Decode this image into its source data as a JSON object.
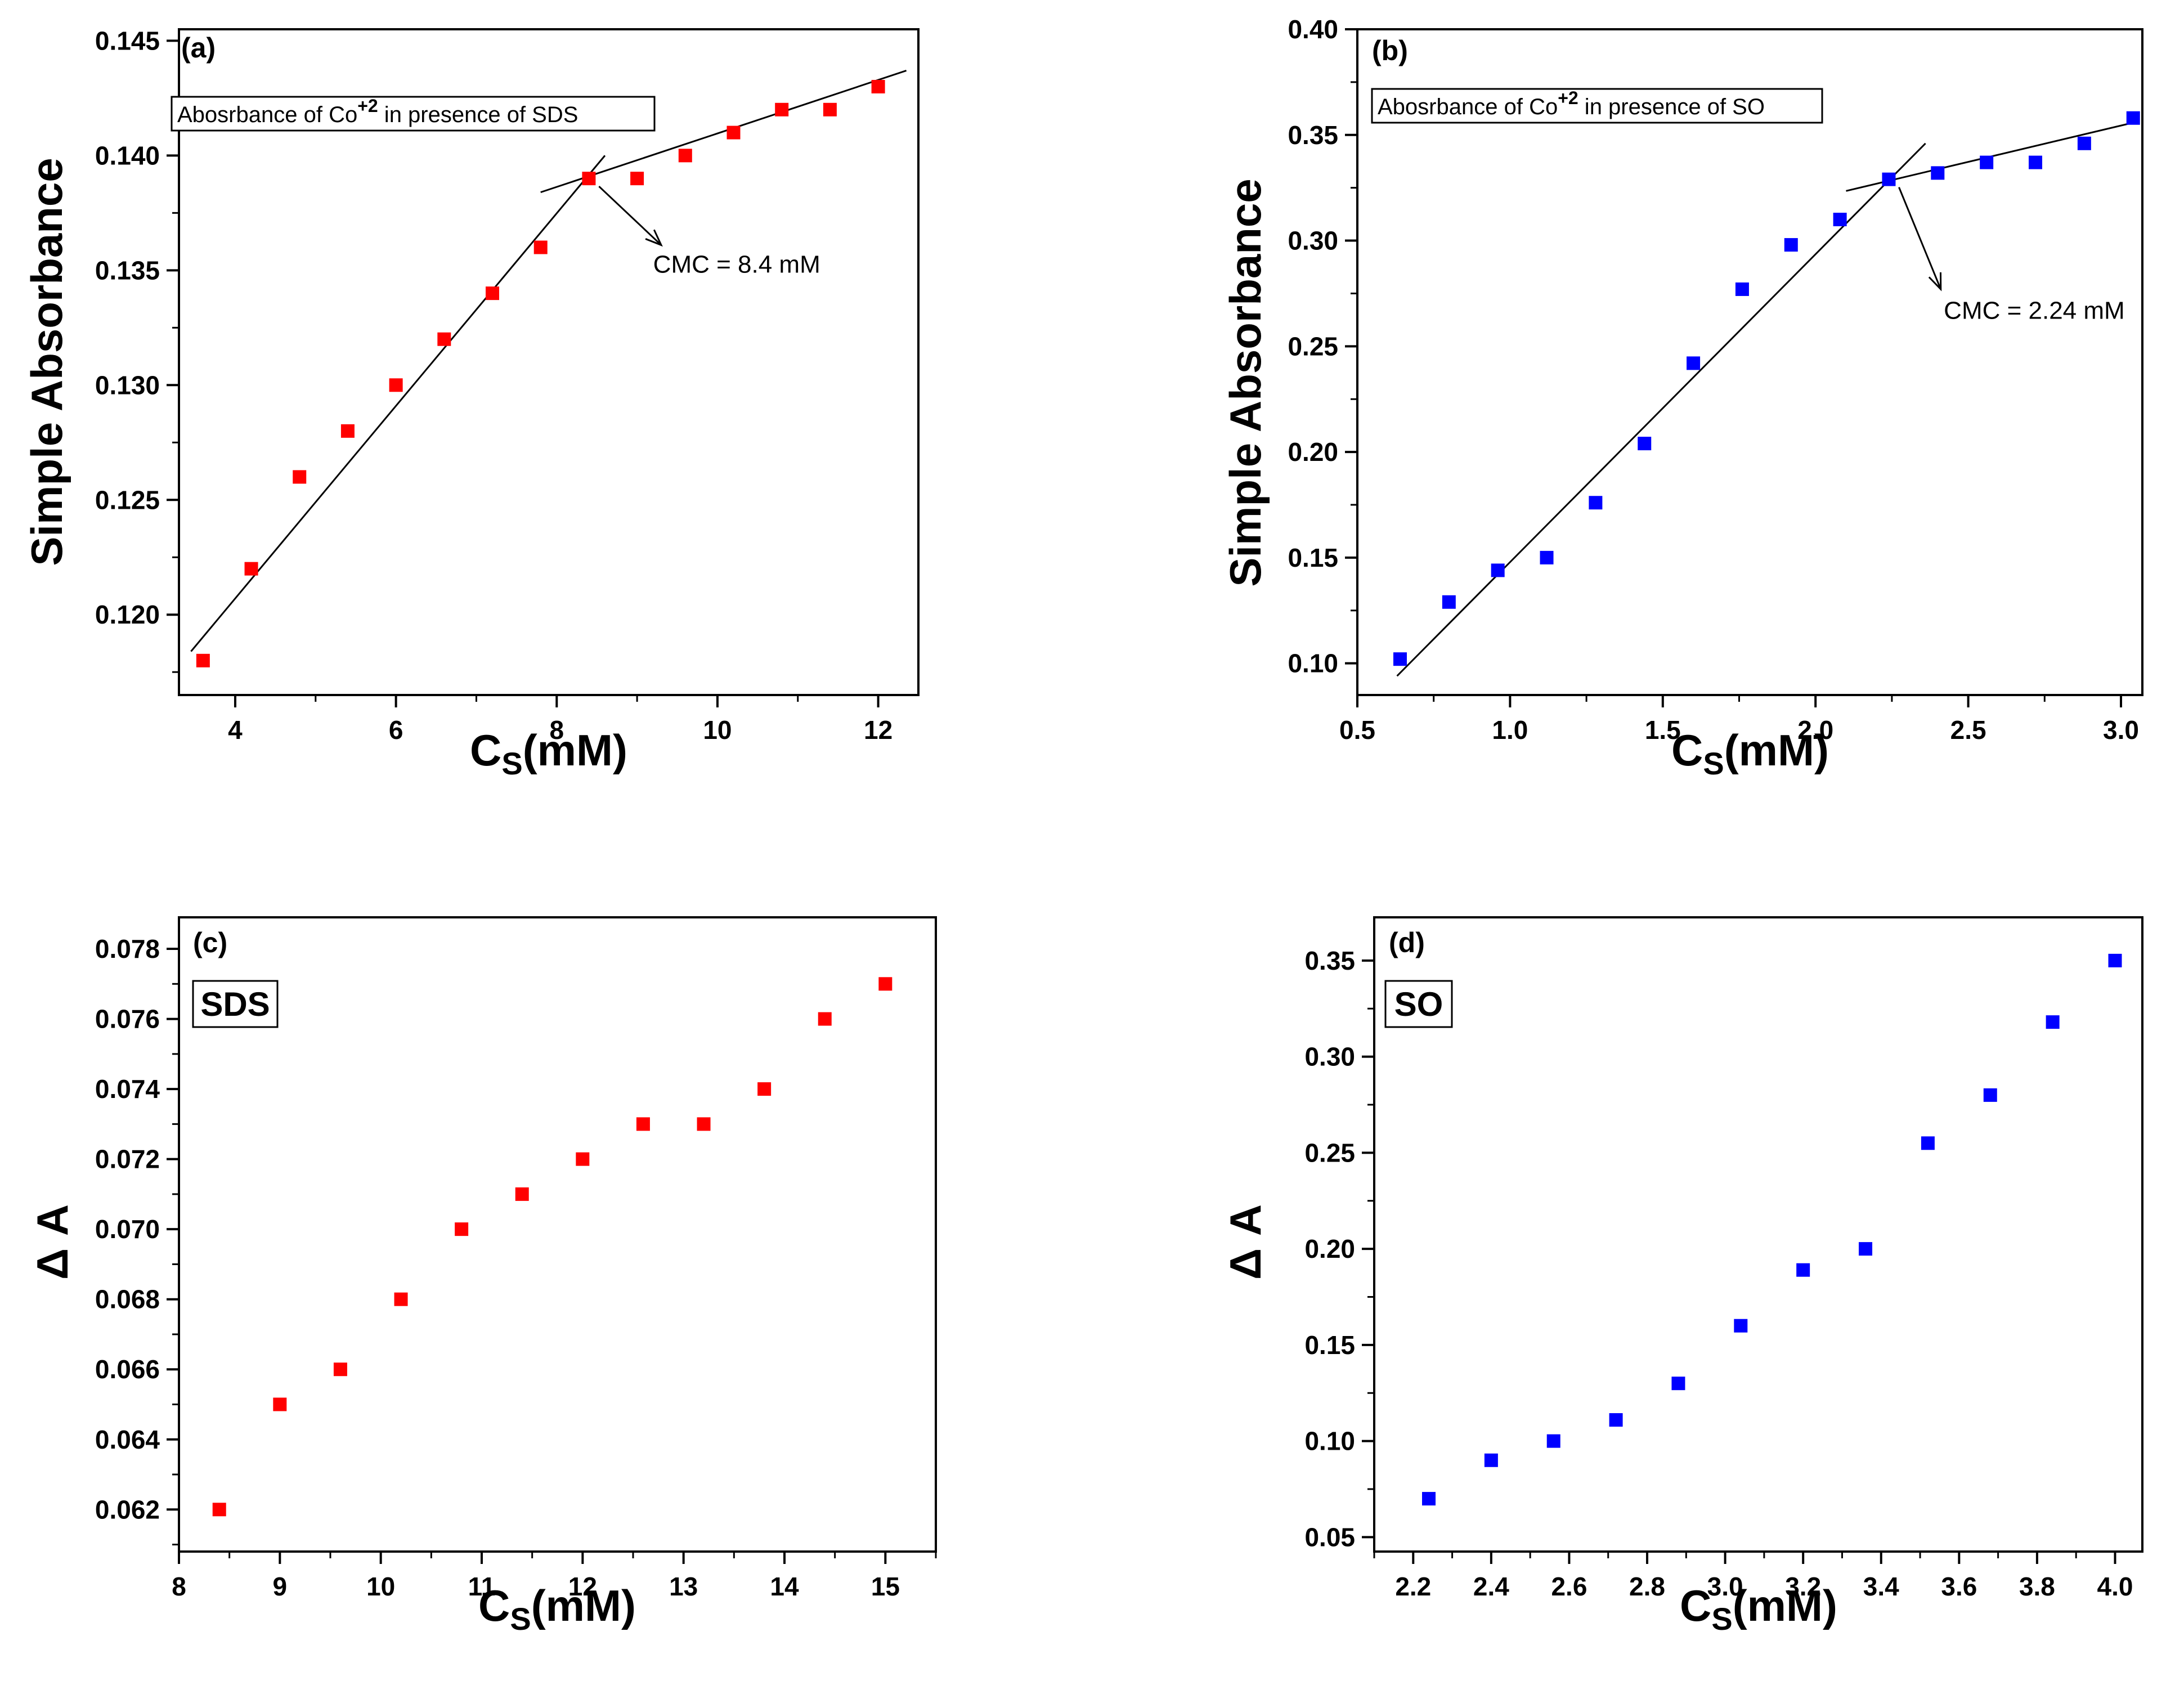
{
  "chart_data": [
    {
      "id": "a",
      "type": "scatter",
      "panel_label": "(a)",
      "legend": {
        "text": "Abosrbance of Co",
        "superscript": "+2",
        "suffix": " in presence of SDS"
      },
      "xlabel": {
        "main": "C",
        "sub": "S",
        "rest": "(mM)"
      },
      "ylabel": "Simple Absorbance",
      "xlim": [
        3.3,
        12.5
      ],
      "ylim": [
        0.1165,
        0.1455
      ],
      "xticks": [
        4,
        6,
        8,
        10,
        12
      ],
      "xtick_labels": [
        "4",
        "6",
        "8",
        "10",
        "12"
      ],
      "yticks": [
        0.12,
        0.125,
        0.13,
        0.135,
        0.14,
        0.145
      ],
      "ytick_labels": [
        "0.120",
        "0.125",
        "0.130",
        "0.135",
        "0.140",
        "0.145"
      ],
      "marker_color": "#ff0000",
      "x": [
        3.6,
        4.2,
        4.8,
        5.4,
        6.0,
        6.6,
        7.2,
        7.8,
        8.4,
        9.0,
        9.6,
        10.2,
        10.8,
        11.4,
        12.0
      ],
      "y": [
        0.118,
        0.122,
        0.126,
        0.128,
        0.13,
        0.132,
        0.134,
        0.136,
        0.139,
        0.139,
        0.14,
        0.141,
        0.142,
        0.142,
        0.143
      ],
      "fit_lines": [
        {
          "x": [
            3.45,
            8.6
          ],
          "y": [
            0.1184,
            0.14
          ]
        },
        {
          "x": [
            7.8,
            12.35
          ],
          "y": [
            0.1384,
            0.1437
          ]
        }
      ],
      "annotation": {
        "text": "CMC = 8.4 mM",
        "point": [
          8.4,
          0.139
        ],
        "arrow_to": [
          9.3,
          0.1361
        ],
        "text_at": [
          9.2,
          0.1349
        ]
      }
    },
    {
      "id": "b",
      "type": "scatter",
      "panel_label": "(b)",
      "legend": {
        "text": "Abosrbance of Co",
        "superscript": "+2",
        "suffix": " in presence of SO"
      },
      "xlabel": {
        "main": "C",
        "sub": "S",
        "rest": "(mM)"
      },
      "ylabel": "Simple Absorbance",
      "xlim": [
        0.5,
        3.07
      ],
      "ylim": [
        0.085,
        0.4
      ],
      "xticks": [
        0.5,
        1.0,
        1.5,
        2.0,
        2.5,
        3.0
      ],
      "xtick_labels": [
        "0.5",
        "1.0",
        "1.5",
        "2.0",
        "2.5",
        "3.0"
      ],
      "yticks": [
        0.1,
        0.15,
        0.2,
        0.25,
        0.3,
        0.35,
        0.4
      ],
      "ytick_labels": [
        "0.10",
        "0.15",
        "0.20",
        "0.25",
        "0.30",
        "0.35",
        "0.40"
      ],
      "marker_color": "#0000ff",
      "x": [
        0.64,
        0.8,
        0.96,
        1.12,
        1.28,
        1.44,
        1.6,
        1.76,
        1.92,
        2.08,
        2.24,
        2.4,
        2.56,
        2.72,
        2.88,
        3.04
      ],
      "y": [
        0.102,
        0.129,
        0.144,
        0.15,
        0.176,
        0.204,
        0.242,
        0.277,
        0.298,
        0.31,
        0.329,
        0.332,
        0.337,
        0.337,
        0.346,
        0.358
      ],
      "fit_lines": [
        {
          "x": [
            0.63,
            2.36
          ],
          "y": [
            0.094,
            0.346
          ]
        },
        {
          "x": [
            2.1,
            3.06
          ],
          "y": [
            0.3235,
            0.3565
          ]
        }
      ],
      "annotation": {
        "text": "CMC = 2.24 mM",
        "point": [
          2.24,
          0.329
        ],
        "arrow_to": [
          2.41,
          0.277
        ],
        "text_at": [
          2.42,
          0.263
        ]
      }
    },
    {
      "id": "c",
      "type": "scatter",
      "panel_label": "(c)",
      "legend_box": "SDS",
      "xlabel": {
        "main": "C",
        "sub": "S",
        "rest": "(mM)"
      },
      "ylabel": "Δ A",
      "xlim": [
        8.0,
        15.5
      ],
      "ylim": [
        0.0608,
        0.0789
      ],
      "xticks": [
        8,
        9,
        10,
        11,
        12,
        13,
        14,
        15
      ],
      "xtick_labels": [
        "8",
        "9",
        "10",
        "11",
        "12",
        "13",
        "14",
        "15"
      ],
      "yticks": [
        0.062,
        0.064,
        0.066,
        0.068,
        0.07,
        0.072,
        0.074,
        0.076,
        0.078
      ],
      "ytick_labels": [
        "0.062",
        "0.064",
        "0.066",
        "0.068",
        "0.070",
        "0.072",
        "0.074",
        "0.076",
        "0.078"
      ],
      "marker_color": "#ff0000",
      "x": [
        8.4,
        9.0,
        9.6,
        10.2,
        10.8,
        11.4,
        12.0,
        12.6,
        13.2,
        13.8,
        14.4,
        15.0
      ],
      "y": [
        0.062,
        0.065,
        0.066,
        0.068,
        0.07,
        0.071,
        0.072,
        0.073,
        0.073,
        0.074,
        0.076,
        0.077
      ]
    },
    {
      "id": "d",
      "type": "scatter",
      "panel_label": "(d)",
      "legend_box": "SO",
      "xlabel": {
        "main": "C",
        "sub": "S",
        "rest": "(mM)"
      },
      "ylabel": "Δ A",
      "xlim": [
        2.1,
        4.07
      ],
      "ylim": [
        0.0425,
        0.3725
      ],
      "xticks": [
        2.2,
        2.4,
        2.6,
        2.8,
        3.0,
        3.2,
        3.4,
        3.6,
        3.8,
        4.0
      ],
      "xtick_labels": [
        "2.2",
        "2.4",
        "2.6",
        "2.8",
        "3.0",
        "3.2",
        "3.4",
        "3.6",
        "3.8",
        "4.0"
      ],
      "yticks": [
        0.05,
        0.1,
        0.15,
        0.2,
        0.25,
        0.3,
        0.35
      ],
      "ytick_labels": [
        "0.05",
        "0.10",
        "0.15",
        "0.20",
        "0.25",
        "0.30",
        "0.35"
      ],
      "marker_color": "#0000ff",
      "x": [
        2.24,
        2.4,
        2.56,
        2.72,
        2.88,
        3.04,
        3.2,
        3.36,
        3.52,
        3.68,
        3.84,
        4.0
      ],
      "y": [
        0.07,
        0.09,
        0.1,
        0.111,
        0.13,
        0.16,
        0.189,
        0.2,
        0.255,
        0.28,
        0.318,
        0.35
      ]
    }
  ]
}
